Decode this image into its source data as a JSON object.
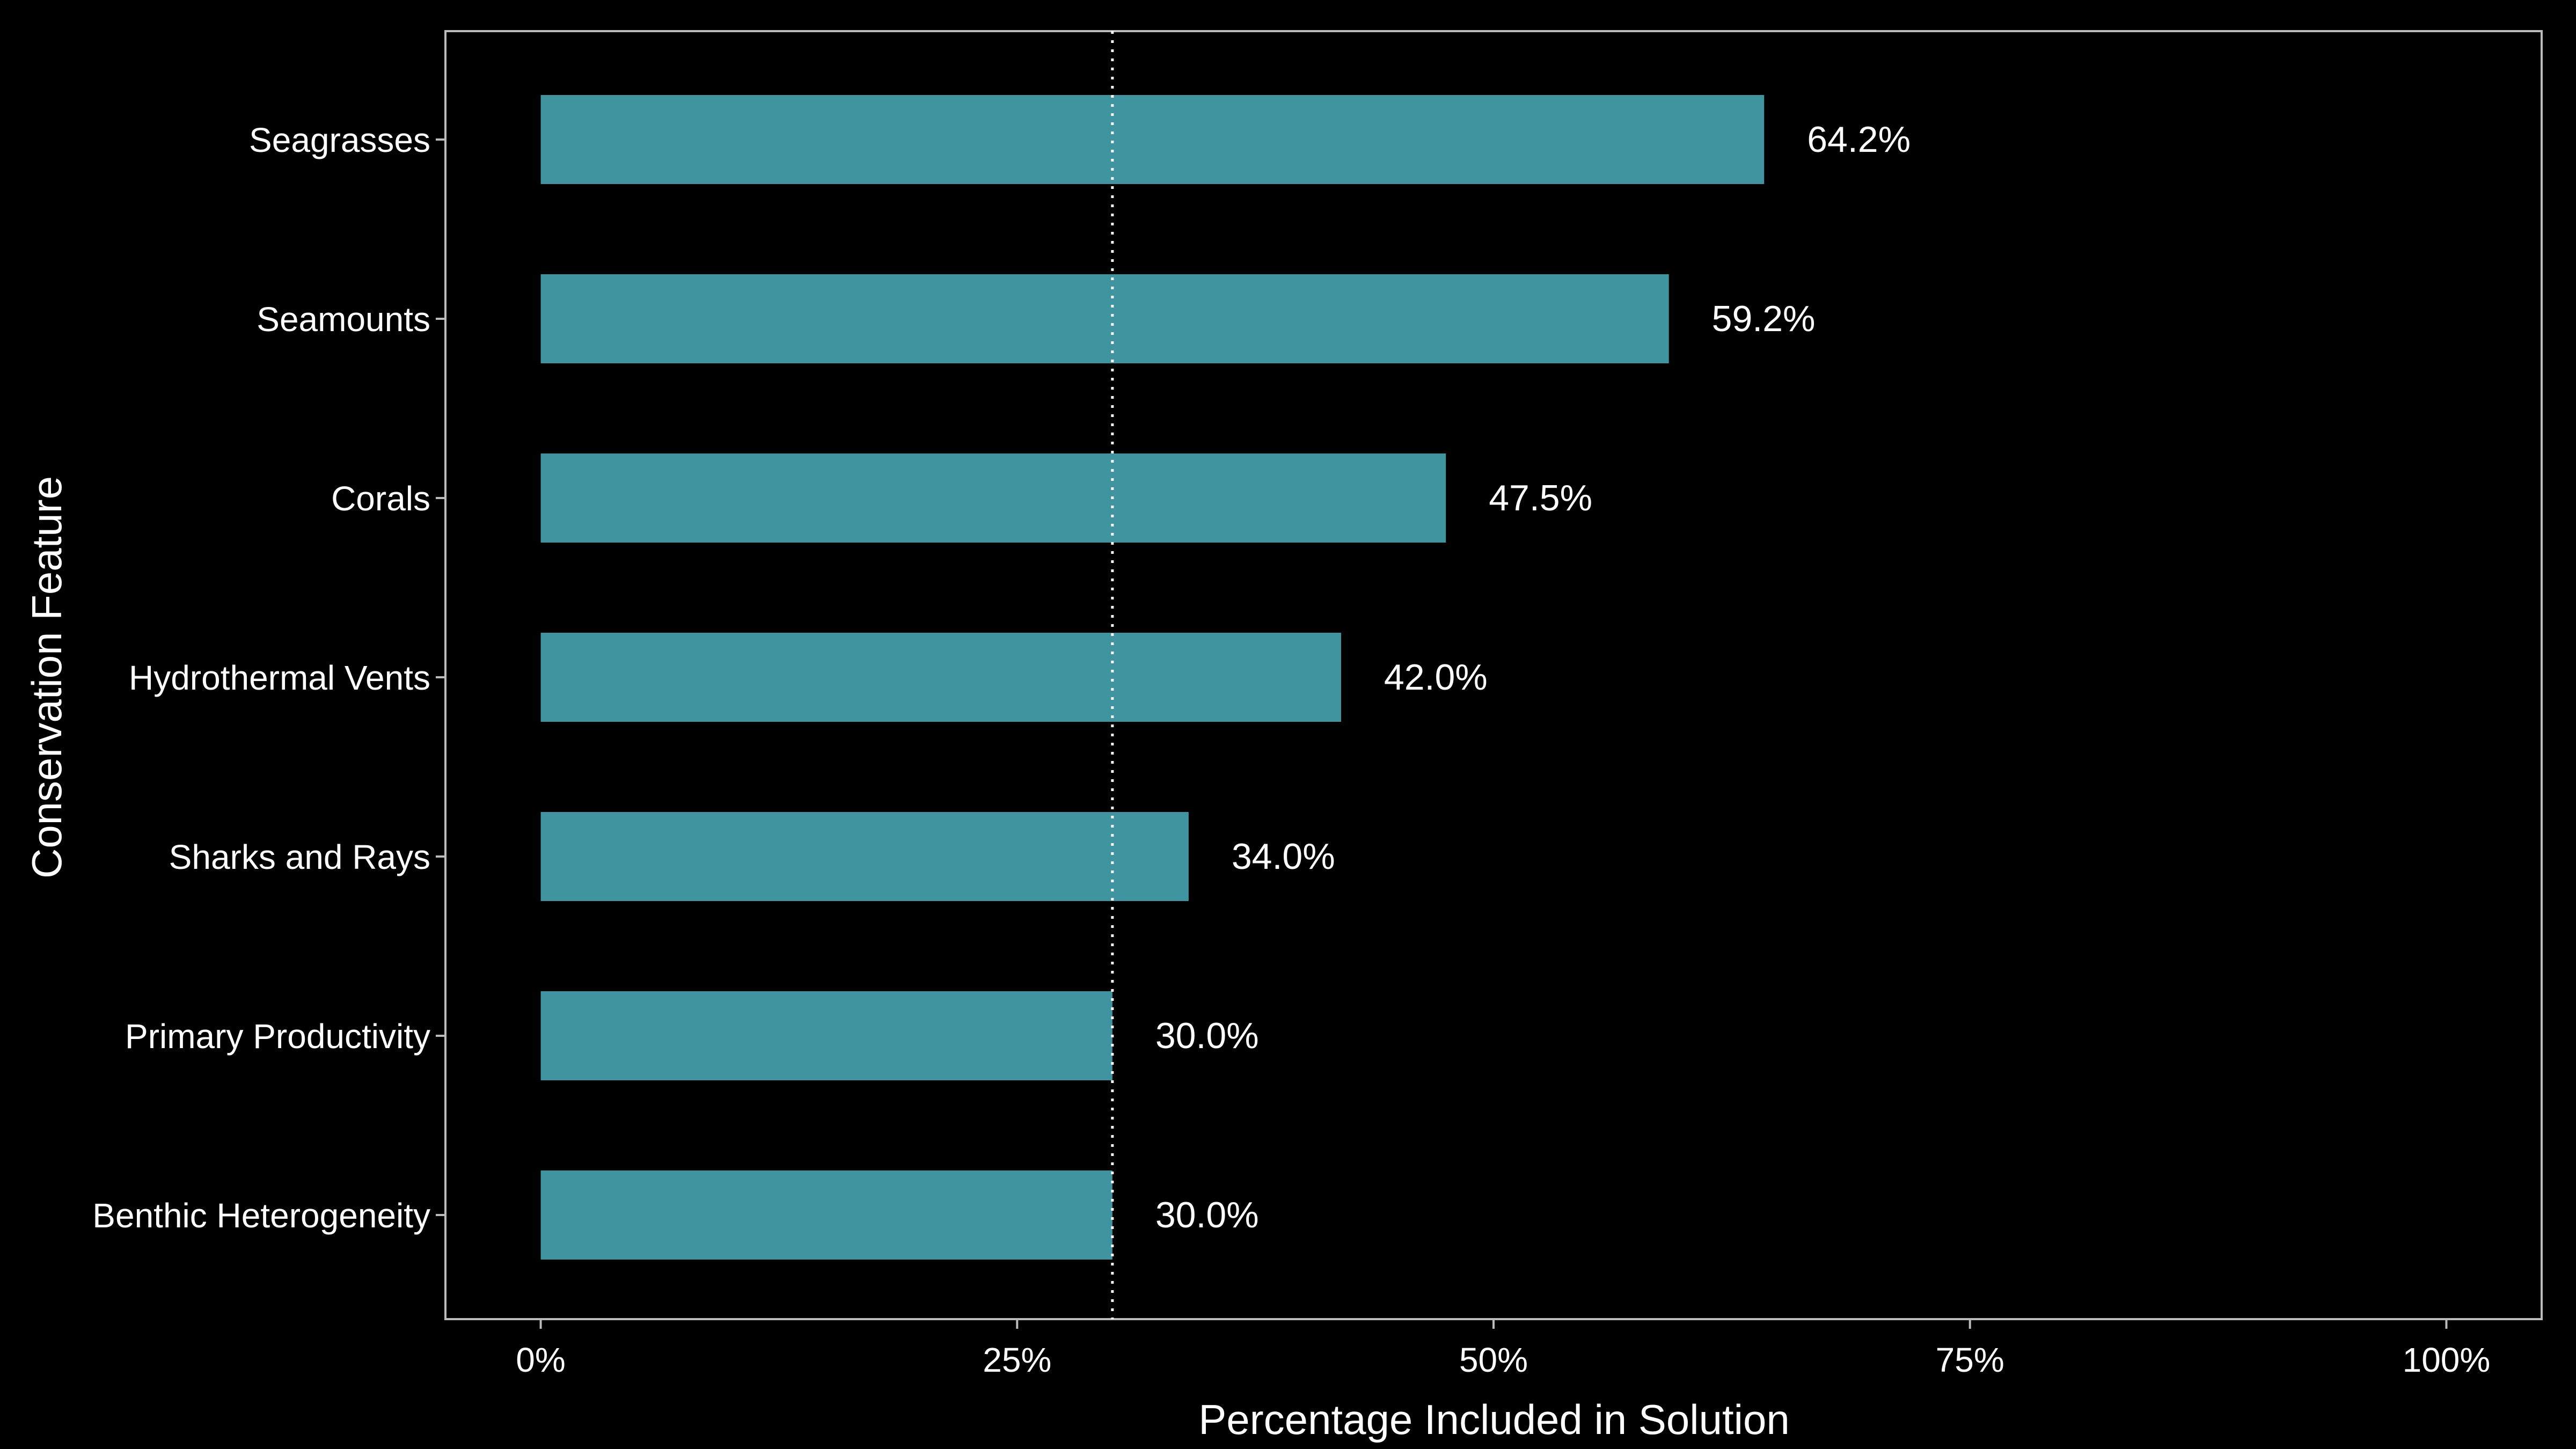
{
  "chart_data": {
    "type": "bar",
    "orientation": "horizontal",
    "xlabel": "Percentage Included in Solution",
    "ylabel": "Conservation Feature",
    "categories": [
      "Seagrasses",
      "Seamounts",
      "Corals",
      "Hydrothermal Vents",
      "Sharks and Rays",
      "Primary Productivity",
      "Benthic Heterogeneity"
    ],
    "values": [
      64.2,
      59.2,
      47.5,
      42.0,
      34.0,
      30.0,
      30.0
    ],
    "value_labels": [
      "64.2%",
      "59.2%",
      "47.5%",
      "42.0%",
      "34.0%",
      "30.0%",
      "30.0%"
    ],
    "xlim": [
      -5,
      105
    ],
    "x_ticks": [
      0,
      25,
      50,
      75,
      100
    ],
    "x_tick_labels": [
      "0%",
      "25%",
      "50%",
      "75%",
      "100%"
    ],
    "reference_line": {
      "x": 30,
      "style": "dotted"
    },
    "grid": false,
    "legend": "none"
  },
  "colors": {
    "background": "#000000",
    "bar": "#4094A0",
    "text": "#FFFFFF",
    "panel_border": "#BBBBBB",
    "reference_line": "#FFFFFF"
  }
}
